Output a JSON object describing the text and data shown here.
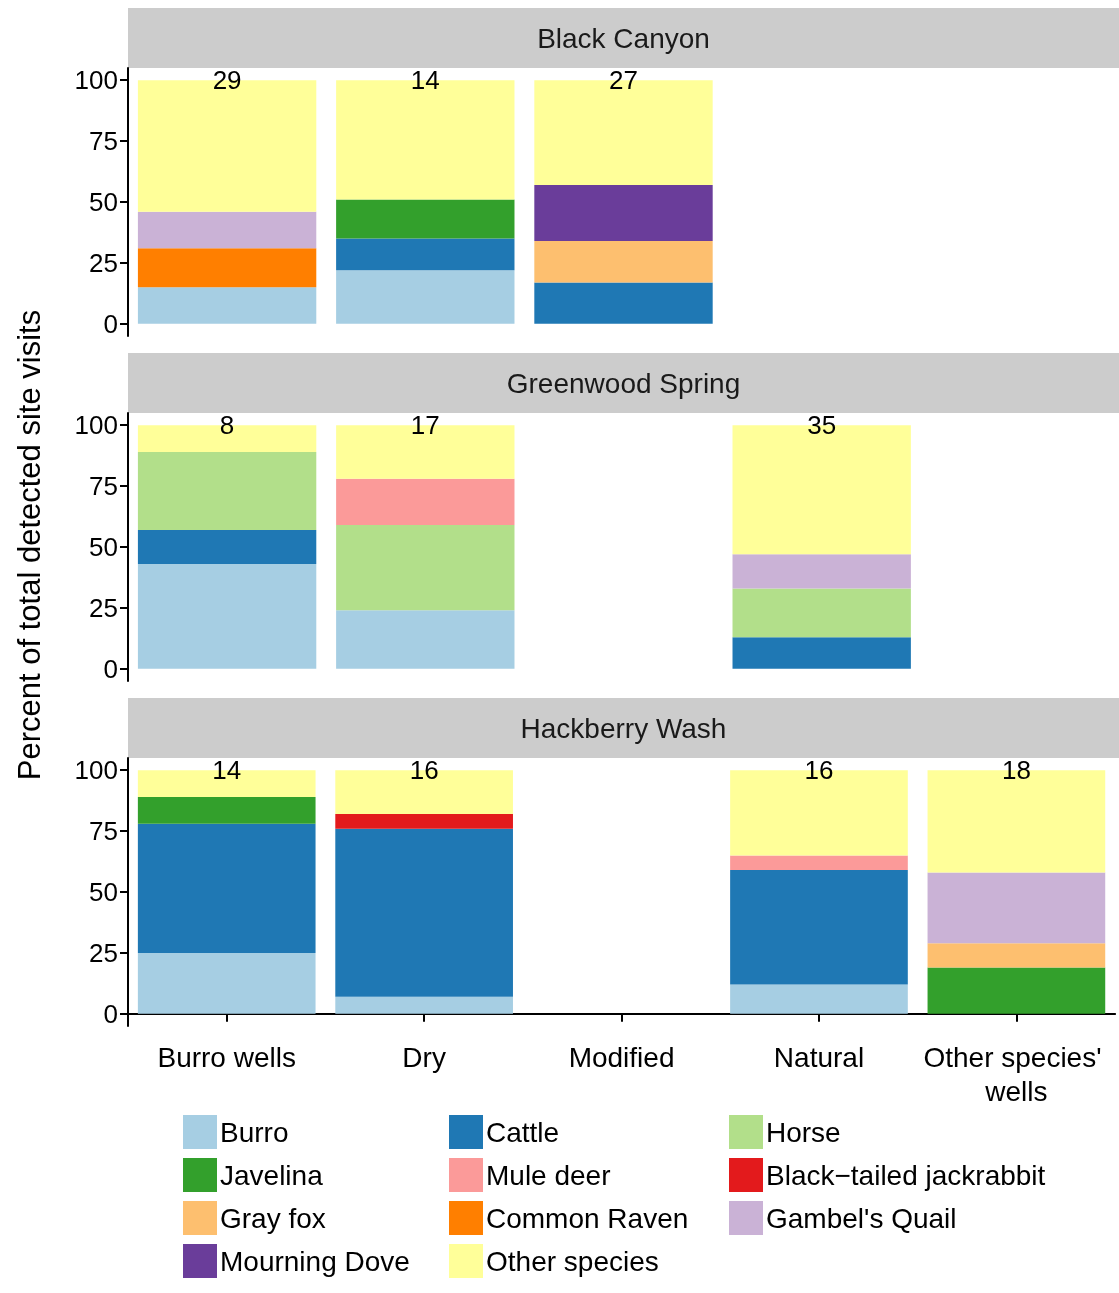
{
  "chart_data": [
    {
      "type": "bar",
      "title": "Black Canyon",
      "stacked": true,
      "tick_labels": "y",
      "categories": [
        "Burro wells",
        "Dry",
        "Modified",
        "Natural",
        "Other species' wells"
      ],
      "ylim": [
        -5,
        105
      ],
      "yticks": [
        0,
        25,
        50,
        75,
        100
      ],
      "annotations": [
        {
          "text": "29",
          "x": "Burro wells",
          "y": 100
        },
        {
          "text": "14",
          "x": "Dry",
          "y": 100
        },
        {
          "text": "27",
          "x": "Modified",
          "y": 100
        }
      ],
      "series": [
        {
          "color": "#a6cee3",
          "values": [
            15,
            22,
            null,
            null,
            null
          ]
        },
        {
          "color": "#1f78b4",
          "values": [
            null,
            13,
            17,
            null,
            null
          ]
        },
        {
          "color": "#33a02c",
          "values": [
            null,
            16,
            null,
            null,
            null
          ]
        },
        {
          "color": "#fdbf6f",
          "values": [
            null,
            null,
            17,
            null,
            null
          ]
        },
        {
          "color": "#ff7f00",
          "values": [
            16,
            null,
            null,
            null,
            null
          ]
        },
        {
          "color": "#cab2d6",
          "values": [
            15,
            null,
            null,
            null,
            null
          ]
        },
        {
          "color": "#6a3d9a",
          "values": [
            null,
            null,
            23,
            null,
            null
          ]
        },
        {
          "color": "#ffff99",
          "values": [
            54,
            49,
            43,
            null,
            null
          ]
        }
      ]
    },
    {
      "type": "bar",
      "title": "Greenwood Spring",
      "ylabel": "Percent of total detected site visits",
      "stacked": true,
      "tick_labels": "y",
      "categories": [
        "Burro wells",
        "Dry",
        "Modified",
        "Natural",
        "Other species' wells"
      ],
      "ylim": [
        -5,
        105
      ],
      "yticks": [
        0,
        25,
        50,
        75,
        100
      ],
      "annotations": [
        {
          "text": "8",
          "x": "Burro wells",
          "y": 100
        },
        {
          "text": "17",
          "x": "Dry",
          "y": 100
        },
        {
          "text": "35",
          "x": "Natural",
          "y": 100
        }
      ],
      "series": [
        {
          "color": "#a6cee3",
          "values": [
            43,
            24,
            null,
            null,
            null
          ]
        },
        {
          "color": "#1f78b4",
          "values": [
            14,
            null,
            null,
            13,
            null
          ]
        },
        {
          "color": "#b2df8a",
          "values": [
            32,
            35,
            null,
            20,
            null
          ]
        },
        {
          "color": "#fb9a99",
          "values": [
            null,
            19,
            null,
            null,
            null
          ]
        },
        {
          "color": "#cab2d6",
          "values": [
            null,
            null,
            null,
            14,
            null
          ]
        },
        {
          "color": "#ffff99",
          "values": [
            11,
            22,
            null,
            53,
            null
          ]
        }
      ]
    },
    {
      "type": "bar",
      "title": "Hackberry Wash",
      "stacked": true,
      "legend": "bottom",
      "categories": [
        "Burro wells",
        "Dry",
        "Modified",
        "Natural",
        "Other species' wells"
      ],
      "ylim": [
        -5,
        105
      ],
      "yticks": [
        0,
        25,
        50,
        75,
        100
      ],
      "annotations": [
        {
          "text": "14",
          "x": "Burro wells",
          "y": 100
        },
        {
          "text": "16",
          "x": "Dry",
          "y": 100
        },
        {
          "text": "16",
          "x": "Natural",
          "y": 100
        },
        {
          "text": "18",
          "x": "Other species' wells",
          "y": 100
        }
      ],
      "series": [
        {
          "name": "Burro",
          "color": "#a6cee3",
          "values": [
            25,
            7,
            null,
            12,
            null
          ]
        },
        {
          "name": "Cattle",
          "color": "#1f78b4",
          "values": [
            53,
            69,
            null,
            47,
            null
          ]
        },
        {
          "name": "Horse",
          "color": "#b2df8a",
          "values": [
            null,
            null,
            null,
            null,
            null
          ]
        },
        {
          "name": "Javelina",
          "color": "#33a02c",
          "values": [
            11,
            null,
            null,
            null,
            19
          ]
        },
        {
          "name": "Mule deer",
          "color": "#fb9a99",
          "values": [
            null,
            null,
            null,
            6,
            null
          ]
        },
        {
          "name": "Black−tailed jackrabbit",
          "color": "#e31a1c",
          "values": [
            null,
            6,
            null,
            null,
            null
          ]
        },
        {
          "name": "Gray fox",
          "color": "#fdbf6f",
          "values": [
            null,
            null,
            null,
            null,
            10
          ]
        },
        {
          "name": "Common Raven",
          "color": "#ff7f00",
          "values": [
            null,
            null,
            null,
            null,
            null
          ]
        },
        {
          "name": "Gambel's Quail",
          "color": "#cab2d6",
          "values": [
            null,
            null,
            null,
            null,
            29
          ]
        },
        {
          "name": "Mourning Dove",
          "color": "#6a3d9a",
          "values": [
            null,
            null,
            null,
            null,
            null
          ]
        },
        {
          "name": "Other species",
          "color": "#ffff99",
          "values": [
            11,
            18,
            null,
            35,
            42
          ]
        }
      ]
    }
  ]
}
